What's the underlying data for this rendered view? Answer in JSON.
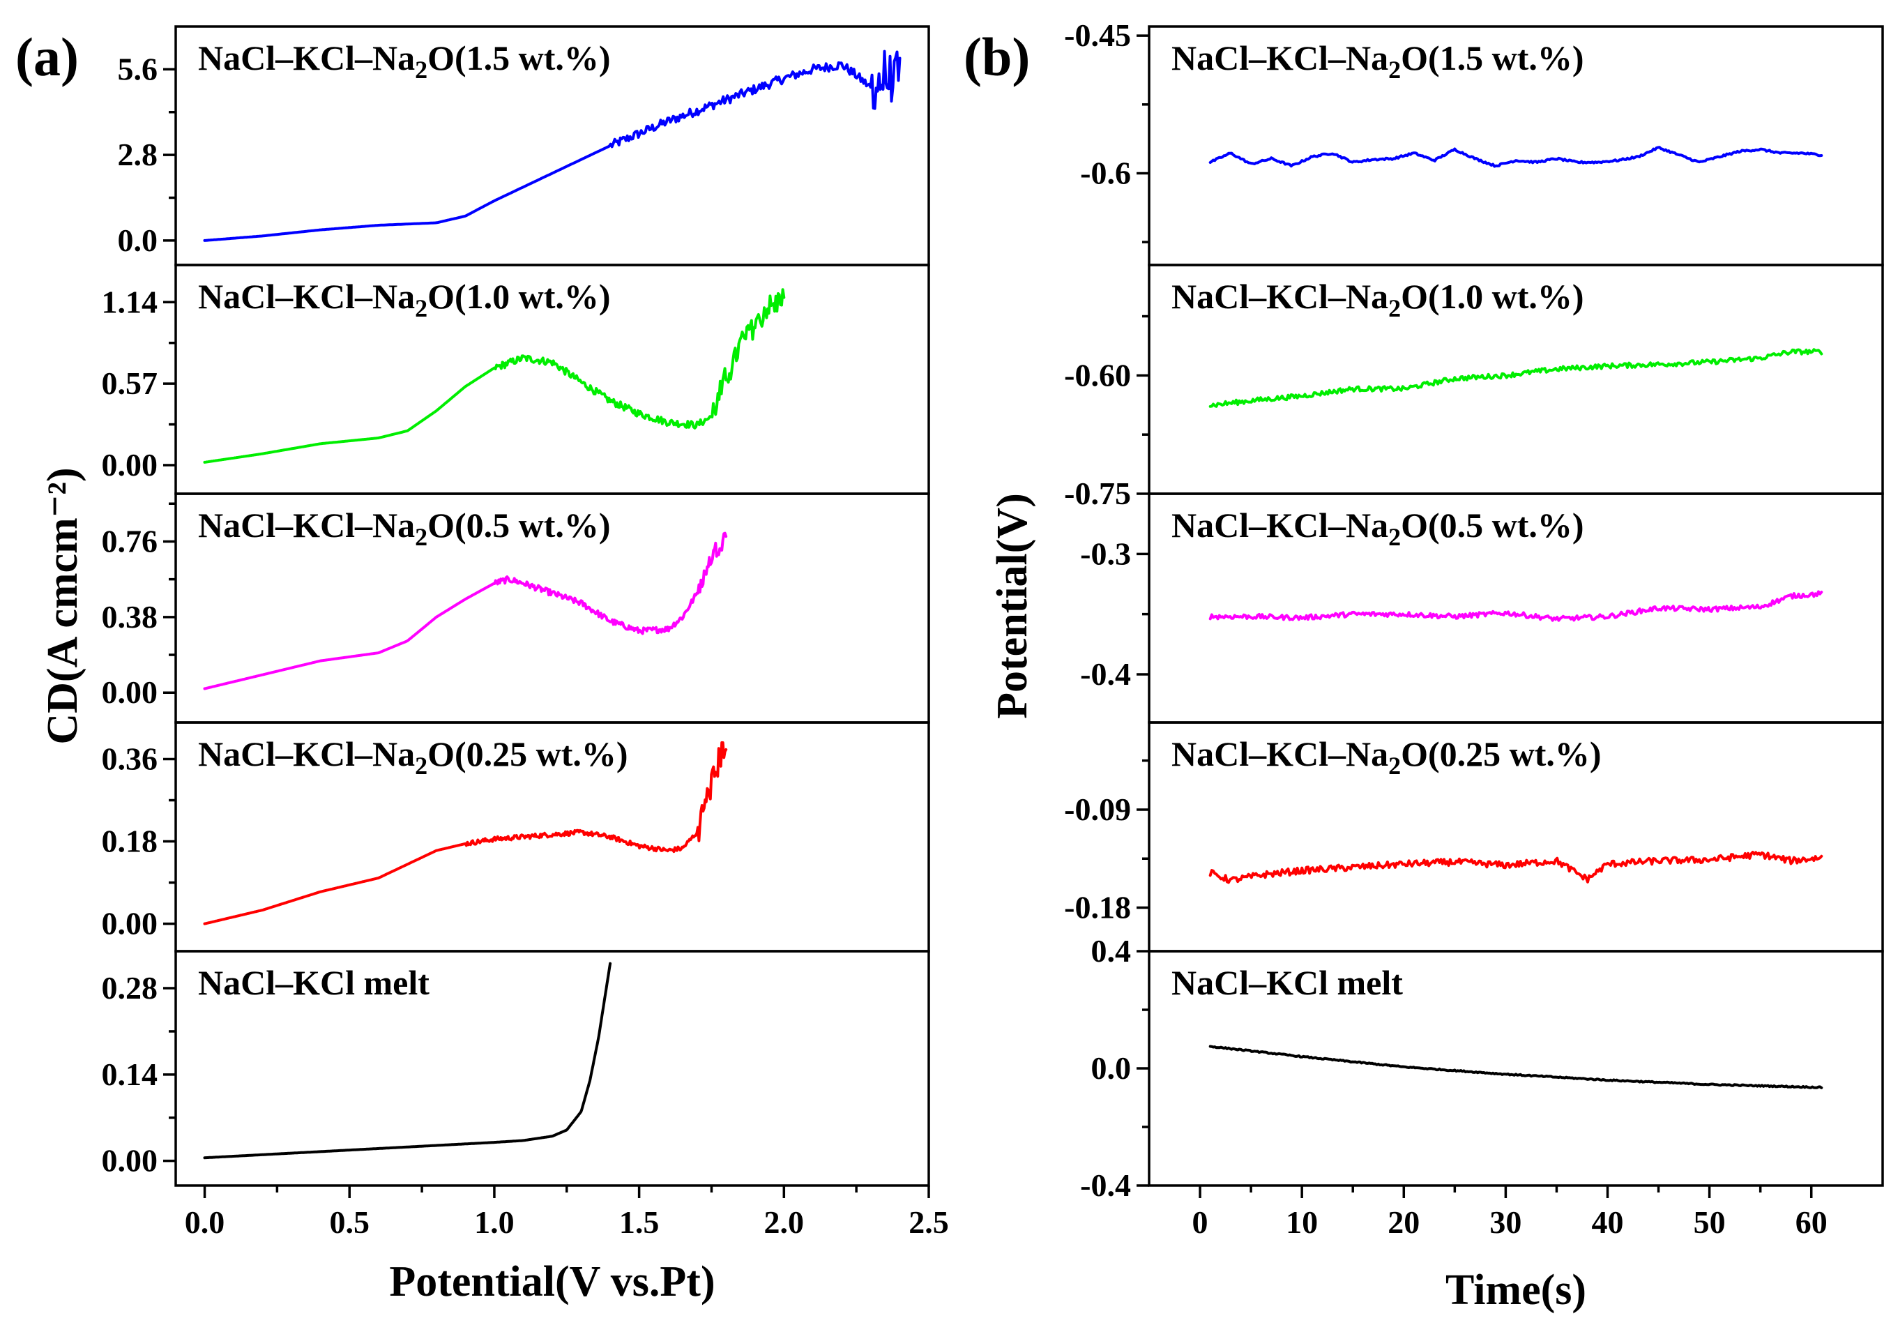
{
  "chart_data": [
    {
      "panel_label": "(a)",
      "type": "line",
      "xlabel": "Potential(V vs.Pt)",
      "ylabel": "CD(A cmcm⁻²)",
      "xlim": [
        -0.1,
        2.5
      ],
      "xticks": [
        0.0,
        0.5,
        1.0,
        1.5,
        2.0,
        2.5
      ],
      "xtick_labels": [
        "0.0",
        "0.5",
        "1.0",
        "1.5",
        "2.0",
        "2.5"
      ],
      "subplots": [
        {
          "label": "NaCl–KCl–Na2O(1.5 wt.%)",
          "color": "#0000ff",
          "ylim": [
            -0.8,
            7.0
          ],
          "yticks": [
            0.0,
            2.8,
            5.6
          ],
          "ytick_labels": [
            "0.0",
            "2.8",
            "5.6"
          ],
          "x": [
            0.0,
            0.2,
            0.4,
            0.6,
            0.8,
            0.9,
            1.0,
            1.2,
            1.4,
            1.6,
            1.8,
            2.0,
            2.1,
            2.2,
            2.25,
            2.3,
            2.35,
            2.4
          ],
          "y": [
            0.0,
            0.15,
            0.35,
            0.5,
            0.58,
            0.8,
            1.3,
            2.2,
            3.1,
            3.9,
            4.6,
            5.3,
            5.6,
            5.75,
            5.4,
            5.0,
            5.3,
            5.2
          ],
          "noise": 0.15,
          "noise_start": 1.4,
          "noise_end_amp": 0.9,
          "noise_end_start": 2.3
        },
        {
          "label": "NaCl–KCl–Na2O(1.0 wt.%)",
          "color": "#00ee00",
          "ylim": [
            -0.2,
            1.4
          ],
          "yticks": [
            0.0,
            0.57,
            1.14
          ],
          "ytick_labels": [
            "0.00",
            "0.57",
            "1.14"
          ],
          "x": [
            0.0,
            0.2,
            0.4,
            0.6,
            0.7,
            0.8,
            0.9,
            1.0,
            1.1,
            1.2,
            1.3,
            1.4,
            1.5,
            1.6,
            1.7,
            1.75,
            1.8,
            1.85,
            1.9,
            1.95,
            2.0
          ],
          "y": [
            0.02,
            0.08,
            0.15,
            0.19,
            0.24,
            0.38,
            0.55,
            0.68,
            0.75,
            0.72,
            0.58,
            0.45,
            0.36,
            0.3,
            0.28,
            0.34,
            0.6,
            0.85,
            1.0,
            1.1,
            1.18
          ],
          "noise": 0.025,
          "noise_start": 1.0,
          "noise_end_amp": 0.08,
          "noise_end_start": 1.75
        },
        {
          "label": "NaCl–KCl–Na2O(0.5 wt.%)",
          "color": "#ff00ff",
          "ylim": [
            -0.15,
            1.0
          ],
          "yticks": [
            0.0,
            0.38,
            0.76
          ],
          "ytick_labels": [
            "0.00",
            "0.38",
            "0.76"
          ],
          "x": [
            0.0,
            0.2,
            0.4,
            0.6,
            0.7,
            0.8,
            0.9,
            1.0,
            1.05,
            1.1,
            1.2,
            1.3,
            1.4,
            1.5,
            1.6,
            1.65,
            1.7,
            1.75,
            1.8
          ],
          "y": [
            0.02,
            0.09,
            0.16,
            0.2,
            0.26,
            0.38,
            0.47,
            0.55,
            0.57,
            0.55,
            0.5,
            0.45,
            0.36,
            0.31,
            0.32,
            0.38,
            0.5,
            0.68,
            0.8
          ],
          "noise": 0.015,
          "noise_start": 1.0,
          "noise_end_amp": 0.04,
          "noise_end_start": 1.7
        },
        {
          "label": "NaCl–KCl–Na2O(0.25 wt.%)",
          "color": "#ff0000",
          "ylim": [
            -0.06,
            0.44
          ],
          "yticks": [
            0.0,
            0.18,
            0.36
          ],
          "ytick_labels": [
            "0.00",
            "0.18",
            "0.36"
          ],
          "x": [
            0.0,
            0.2,
            0.4,
            0.6,
            0.7,
            0.8,
            0.9,
            1.0,
            1.2,
            1.3,
            1.4,
            1.5,
            1.6,
            1.65,
            1.7,
            1.75,
            1.8
          ],
          "y": [
            0.0,
            0.03,
            0.07,
            0.1,
            0.13,
            0.16,
            0.175,
            0.185,
            0.195,
            0.2,
            0.19,
            0.17,
            0.16,
            0.165,
            0.2,
            0.31,
            0.4
          ],
          "noise": 0.005,
          "noise_start": 0.9,
          "noise_end_amp": 0.03,
          "noise_end_start": 1.7
        },
        {
          "label": "NaCl–KCl melt",
          "color": "#000000",
          "ylim": [
            -0.04,
            0.34
          ],
          "yticks": [
            0.0,
            0.14,
            0.28
          ],
          "ytick_labels": [
            "0.00",
            "0.14",
            "0.28"
          ],
          "x": [
            0.0,
            0.2,
            0.4,
            0.6,
            0.8,
            1.0,
            1.1,
            1.2,
            1.25,
            1.3,
            1.33,
            1.36,
            1.38,
            1.4
          ],
          "y": [
            0.005,
            0.01,
            0.015,
            0.02,
            0.025,
            0.03,
            0.033,
            0.04,
            0.05,
            0.08,
            0.13,
            0.2,
            0.26,
            0.32
          ],
          "noise": 0,
          "noise_start": 99,
          "noise_end_amp": 0,
          "noise_end_start": 99
        }
      ]
    },
    {
      "panel_label": "(b)",
      "type": "line",
      "xlabel": "Time(s)",
      "ylabel": "Potential(V)",
      "xlim": [
        -5,
        67
      ],
      "xticks": [
        0,
        10,
        20,
        30,
        40,
        50,
        60
      ],
      "xtick_labels": [
        "0",
        "10",
        "20",
        "30",
        "40",
        "50",
        "60"
      ],
      "subplots": [
        {
          "label": "NaCl–KCl–Na2O(1.5 wt.%)",
          "color": "#0000ff",
          "ylim": [
            -0.7,
            -0.44
          ],
          "yticks": [
            -0.6,
            -0.45
          ],
          "ytick_labels": [
            "-0.6",
            "-0.45"
          ],
          "x": [
            1,
            3,
            5,
            7,
            9,
            11,
            13,
            15,
            17,
            19,
            21,
            23,
            25,
            27,
            29,
            31,
            33,
            35,
            37,
            39,
            41,
            43,
            45,
            47,
            49,
            51,
            53,
            55,
            57,
            59,
            61
          ],
          "y": [
            -0.588,
            -0.578,
            -0.59,
            -0.584,
            -0.592,
            -0.582,
            -0.578,
            -0.588,
            -0.585,
            -0.584,
            -0.578,
            -0.586,
            -0.574,
            -0.584,
            -0.592,
            -0.586,
            -0.588,
            -0.584,
            -0.588,
            -0.588,
            -0.586,
            -0.582,
            -0.572,
            -0.58,
            -0.588,
            -0.582,
            -0.576,
            -0.574,
            -0.578,
            -0.578,
            -0.58
          ],
          "noise": 0.001
        },
        {
          "label": "NaCl–KCl–Na2O(1.0 wt.%)",
          "color": "#00ee00",
          "ylim": [
            -0.75,
            -0.46
          ],
          "yticks": [
            -0.6,
            -0.75
          ],
          "ytick_labels": [
            "-0.60",
            "-0.75"
          ],
          "x": [
            1,
            5,
            10,
            15,
            20,
            25,
            30,
            35,
            40,
            45,
            50,
            55,
            58,
            61
          ],
          "y": [
            -0.638,
            -0.632,
            -0.626,
            -0.617,
            -0.617,
            -0.604,
            -0.6,
            -0.592,
            -0.588,
            -0.586,
            -0.583,
            -0.578,
            -0.57,
            -0.57
          ],
          "noise": 0.003
        },
        {
          "label": "NaCl–KCl–Na2O(0.5 wt.%)",
          "color": "#ff00ff",
          "ylim": [
            -0.44,
            -0.25
          ],
          "yticks": [
            -0.3,
            -0.4
          ],
          "ytick_labels": [
            "-0.3",
            "-0.4"
          ],
          "x": [
            1,
            5,
            10,
            15,
            20,
            25,
            30,
            35,
            40,
            45,
            50,
            55,
            58,
            61
          ],
          "y": [
            -0.352,
            -0.352,
            -0.353,
            -0.35,
            -0.35,
            -0.352,
            -0.349,
            -0.354,
            -0.352,
            -0.345,
            -0.346,
            -0.344,
            -0.335,
            -0.333
          ],
          "noise": 0.002
        },
        {
          "label": "NaCl–KCl–Na2O(0.25 wt.%)",
          "color": "#ff0000",
          "ylim": [
            -0.22,
            -0.01
          ],
          "yticks": [
            -0.09,
            -0.18
          ],
          "ytick_labels": [
            "-0.09",
            "-0.18"
          ],
          "x": [
            1,
            3,
            6,
            10,
            15,
            20,
            25,
            30,
            35,
            38,
            40,
            45,
            50,
            55,
            58,
            61
          ],
          "y": [
            -0.148,
            -0.155,
            -0.15,
            -0.146,
            -0.143,
            -0.14,
            -0.138,
            -0.141,
            -0.137,
            -0.154,
            -0.14,
            -0.137,
            -0.136,
            -0.131,
            -0.137,
            -0.134
          ],
          "noise": 0.003
        },
        {
          "label": "NaCl–KCl melt",
          "color": "#000000",
          "ylim": [
            -0.4,
            0.4
          ],
          "yticks": [
            0.4,
            0.0,
            -0.4
          ],
          "ytick_labels": [
            "0.4",
            "0.0",
            "-0.4"
          ],
          "x": [
            1,
            10,
            20,
            30,
            40,
            50,
            61
          ],
          "y": [
            0.075,
            0.04,
            0.005,
            -0.02,
            -0.04,
            -0.055,
            -0.065
          ],
          "noise": 0.002
        }
      ]
    }
  ]
}
